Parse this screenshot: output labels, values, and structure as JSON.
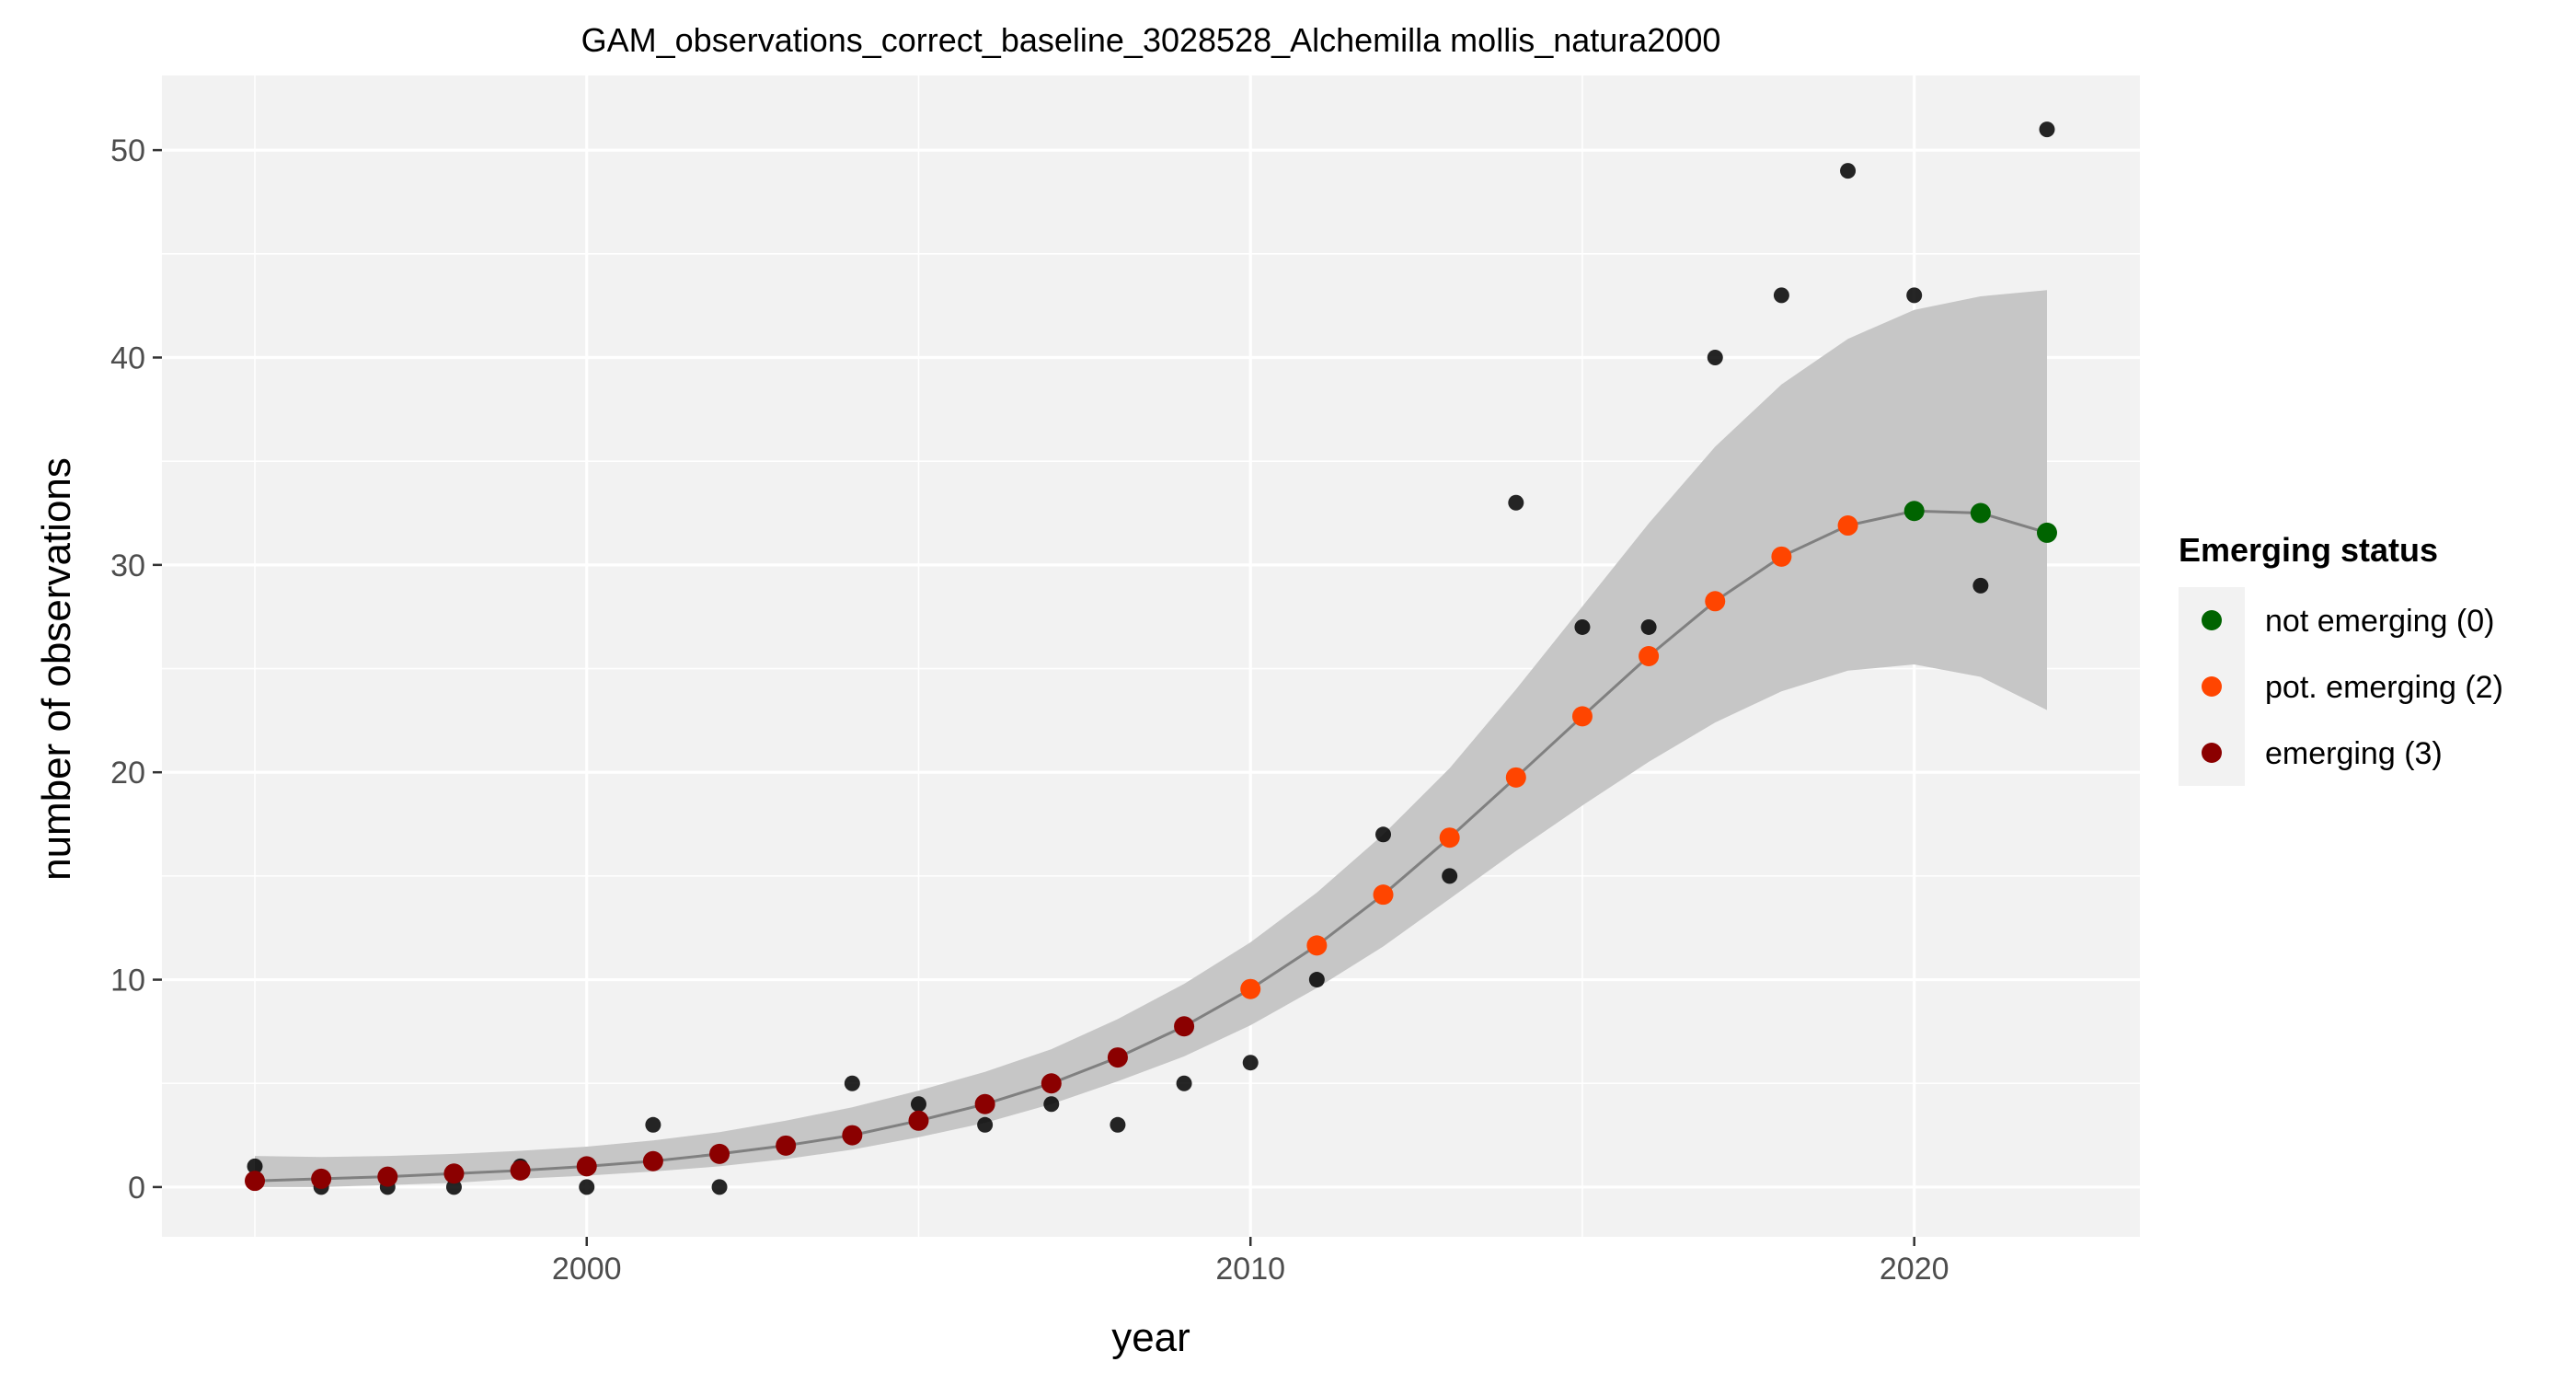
{
  "chart_data": {
    "type": "scatter",
    "title": "GAM_observations_correct_baseline_3028528_Alchemilla mollis_natura2000",
    "xlabel": "year",
    "ylabel": "number of observations",
    "xlim": [
      1993.6,
      2023.4
    ],
    "ylim": [
      -2.4,
      53.6
    ],
    "x_ticks": [
      2000,
      2010,
      2020
    ],
    "y_ticks": [
      0,
      10,
      20,
      30,
      40,
      50
    ],
    "grid": true,
    "legend": {
      "title": "Emerging status",
      "position": "right",
      "entries": [
        {
          "label": "not emerging (0)",
          "color": "#006400"
        },
        {
          "label": "pot. emerging (2)",
          "color": "#FF4500"
        },
        {
          "label": "emerging (3)",
          "color": "#8B0000"
        }
      ]
    },
    "observations": {
      "color": "#000000",
      "x": [
        1995,
        1996,
        1997,
        1998,
        1999,
        2000,
        2001,
        2002,
        2003,
        2004,
        2005,
        2006,
        2007,
        2008,
        2009,
        2010,
        2011,
        2012,
        2013,
        2014,
        2015,
        2016,
        2017,
        2018,
        2019,
        2020,
        2021,
        2022
      ],
      "y": [
        1,
        0,
        0,
        0,
        1,
        0,
        3,
        0,
        2,
        5,
        4,
        3,
        4,
        3,
        5,
        6,
        10,
        17,
        15,
        33,
        27,
        27,
        40,
        43,
        49,
        43,
        29,
        51
      ]
    },
    "fit": {
      "line_color": "#808080",
      "band_color": "#C6C6C6",
      "x": [
        1995,
        1996,
        1997,
        1998,
        1999,
        2000,
        2001,
        2002,
        2003,
        2004,
        2005,
        2006,
        2007,
        2008,
        2009,
        2010,
        2011,
        2012,
        2013,
        2014,
        2015,
        2016,
        2017,
        2018,
        2019,
        2020,
        2021,
        2022
      ],
      "y": [
        0.3,
        0.4,
        0.5,
        0.65,
        0.8,
        1.0,
        1.25,
        1.6,
        2.0,
        2.5,
        3.2,
        4.0,
        5.0,
        6.25,
        7.75,
        9.55,
        11.65,
        14.1,
        16.85,
        19.75,
        22.7,
        25.6,
        28.25,
        30.4,
        31.9,
        32.6,
        32.5,
        31.55
      ],
      "lower": [
        0.0,
        0.0,
        0.1,
        0.2,
        0.4,
        0.55,
        0.75,
        1.0,
        1.35,
        1.8,
        2.4,
        3.1,
        4.0,
        5.1,
        6.3,
        7.8,
        9.6,
        11.6,
        13.9,
        16.2,
        18.4,
        20.5,
        22.4,
        23.9,
        24.9,
        25.2,
        24.6,
        23.0
      ],
      "upper": [
        1.5,
        1.45,
        1.5,
        1.6,
        1.75,
        1.95,
        2.25,
        2.65,
        3.2,
        3.85,
        4.65,
        5.55,
        6.65,
        8.1,
        9.8,
        11.8,
        14.2,
        17.0,
        20.2,
        24.0,
        28.0,
        32.0,
        35.7,
        38.7,
        40.9,
        42.3,
        42.95,
        43.25
      ],
      "status": [
        "emerging (3)",
        "emerging (3)",
        "emerging (3)",
        "emerging (3)",
        "emerging (3)",
        "emerging (3)",
        "emerging (3)",
        "emerging (3)",
        "emerging (3)",
        "emerging (3)",
        "emerging (3)",
        "emerging (3)",
        "emerging (3)",
        "emerging (3)",
        "emerging (3)",
        "pot. emerging (2)",
        "pot. emerging (2)",
        "pot. emerging (2)",
        "pot. emerging (2)",
        "pot. emerging (2)",
        "pot. emerging (2)",
        "pot. emerging (2)",
        "pot. emerging (2)",
        "pot. emerging (2)",
        "pot. emerging (2)",
        "not emerging (0)",
        "not emerging (0)",
        "not emerging (0)"
      ]
    },
    "panel_color": "#F2F2F2",
    "grid_color": "#FFFFFF"
  }
}
